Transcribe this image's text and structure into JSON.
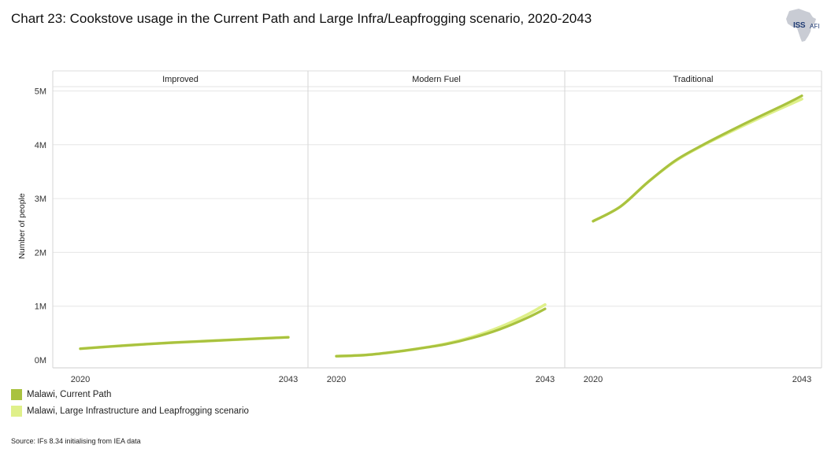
{
  "title": "Chart 23: Cookstove usage in the Current Path and Large Infra/Leapfrogging scenario, 2020-2043",
  "logo": {
    "text": "ISS",
    "sub": "AFI"
  },
  "source": "Source: IFs 8.34 initialising from IEA data",
  "colors": {
    "current_path": "#a9c23f",
    "scenario": "#dff08a"
  },
  "chart_data": {
    "type": "line",
    "ylabel": "Number of people",
    "ylim": [
      0,
      5100000
    ],
    "yticks": [
      {
        "value": 0,
        "label": "0M"
      },
      {
        "value": 1000000,
        "label": "1M"
      },
      {
        "value": 2000000,
        "label": "2M"
      },
      {
        "value": 3000000,
        "label": "3M"
      },
      {
        "value": 4000000,
        "label": "4M"
      },
      {
        "value": 5000000,
        "label": "5M"
      }
    ],
    "xlim": [
      2020,
      2043
    ],
    "xticks": [
      2020,
      2043
    ],
    "grid": true,
    "legend_position": "bottom-left",
    "panels": [
      {
        "title": "Improved",
        "series": [
          {
            "name": "Malawi, Current Path",
            "x": [
              2020,
              2025,
              2030,
              2035,
              2040,
              2043
            ],
            "y": [
              210000,
              270000,
              320000,
              360000,
              400000,
              420000
            ]
          },
          {
            "name": "Malawi, Large Infrastructure and Leapfrogging scenario",
            "x": [
              2020,
              2025,
              2030,
              2035,
              2040,
              2043
            ],
            "y": [
              210000,
              270000,
              320000,
              360000,
              400000,
              425000
            ]
          }
        ]
      },
      {
        "title": "Modern Fuel",
        "series": [
          {
            "name": "Malawi, Current Path",
            "x": [
              2020,
              2023,
              2026,
              2029,
              2032,
              2035,
              2038,
              2041,
              2043
            ],
            "y": [
              70000,
              90000,
              140000,
              210000,
              290000,
              410000,
              570000,
              780000,
              950000
            ]
          },
          {
            "name": "Malawi, Large Infrastructure and Leapfrogging scenario",
            "x": [
              2020,
              2023,
              2026,
              2029,
              2032,
              2035,
              2038,
              2041,
              2043
            ],
            "y": [
              70000,
              90000,
              140000,
              210000,
              300000,
              430000,
              610000,
              840000,
              1030000
            ]
          }
        ]
      },
      {
        "title": "Traditional",
        "series": [
          {
            "name": "Malawi, Current Path",
            "x": [
              2020,
              2023,
              2026,
              2029,
              2032,
              2035,
              2038,
              2041,
              2043
            ],
            "y": [
              2580000,
              2850000,
              3300000,
              3700000,
              3990000,
              4250000,
              4500000,
              4740000,
              4910000
            ]
          },
          {
            "name": "Malawi, Large Infrastructure and Leapfrogging scenario",
            "x": [
              2020,
              2023,
              2026,
              2029,
              2032,
              2035,
              2038,
              2041,
              2043
            ],
            "y": [
              2580000,
              2850000,
              3300000,
              3690000,
              3980000,
              4230000,
              4470000,
              4700000,
              4850000
            ]
          }
        ]
      }
    ]
  },
  "legend": [
    {
      "label": "Malawi, Current Path",
      "color": "#a9c23f"
    },
    {
      "label": "Malawi, Large Infrastructure and Leapfrogging scenario",
      "color": "#dff08a"
    }
  ]
}
